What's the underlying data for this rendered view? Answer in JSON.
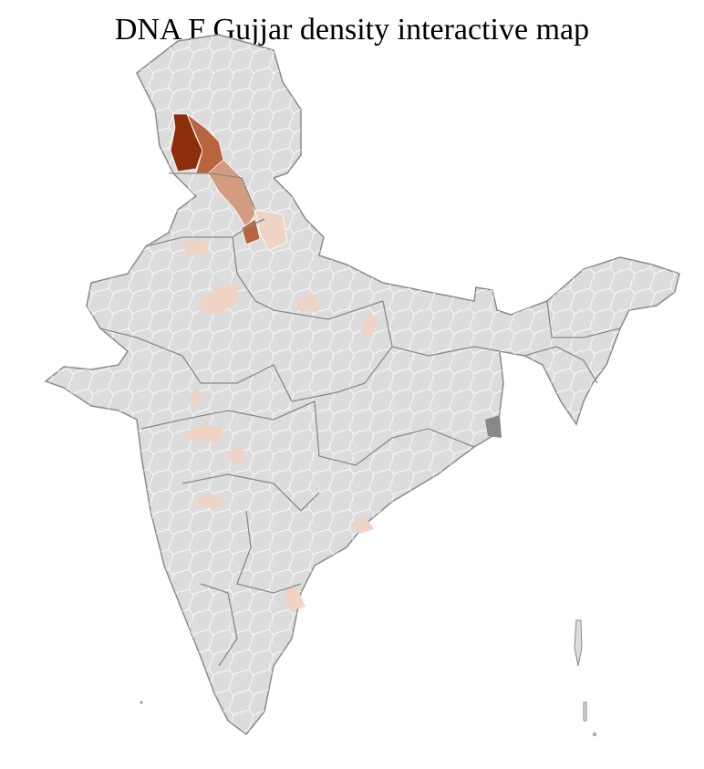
{
  "title": "DNA F Gujjar density interactive map",
  "colors": {
    "base_fill": "#dcdcdc",
    "state_border": "#8a8a8a",
    "district_border": "#ffffff",
    "very_high": "#8b2e0a",
    "high": "#b8653f",
    "medium": "#d39c80",
    "low": "#efd3c5"
  },
  "highlighted_regions": [
    {
      "area": "Jammu & Kashmir west",
      "level": "very_high"
    },
    {
      "area": "Jammu & Kashmir central",
      "level": "high"
    },
    {
      "area": "Himachal Pradesh",
      "level": "medium"
    },
    {
      "area": "Uttarakhand / Haryana border",
      "level": "medium"
    },
    {
      "area": "Western UP",
      "level": "low"
    },
    {
      "area": "Rajasthan north",
      "level": "low"
    },
    {
      "area": "Rajasthan east",
      "level": "low"
    },
    {
      "area": "UP central",
      "level": "low"
    },
    {
      "area": "Bihar west",
      "level": "low"
    },
    {
      "area": "Gujarat east",
      "level": "low"
    },
    {
      "area": "Madhya Pradesh west",
      "level": "low"
    },
    {
      "area": "Maharashtra north",
      "level": "low"
    },
    {
      "area": "Maharashtra central",
      "level": "low"
    },
    {
      "area": "Odisha coast",
      "level": "low"
    },
    {
      "area": "Tamil Nadu north",
      "level": "low"
    }
  ]
}
